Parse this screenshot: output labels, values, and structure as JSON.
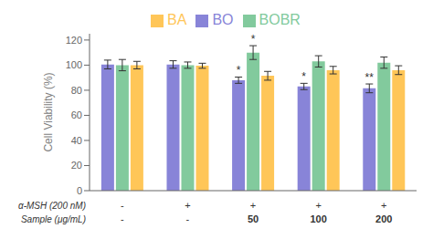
{
  "chart_data": {
    "type": "bar",
    "categories": [
      [
        "-",
        "-"
      ],
      [
        "+",
        "-"
      ],
      [
        "+",
        "50"
      ],
      [
        "+",
        "100"
      ],
      [
        "+",
        "200"
      ]
    ],
    "category_rows": [
      "α-MSH (200 nM)",
      "Sample (μg/mL)"
    ],
    "ylabel": "Cell Viability (%)",
    "ylim": [
      0,
      125
    ],
    "yticks": [
      0,
      20,
      40,
      60,
      80,
      100,
      120
    ],
    "grid": false,
    "legend": "top",
    "series": [
      {
        "name": "BO",
        "color": "#8884d8",
        "values": [
          100.5,
          100.5,
          88.0,
          83.0,
          81.5
        ],
        "errors": [
          3.5,
          3.0,
          2.5,
          2.5,
          3.5
        ]
      },
      {
        "name": "BOBR",
        "color": "#82ca9d",
        "values": [
          100.0,
          100.0,
          110.0,
          103.0,
          102.0
        ],
        "errors": [
          4.5,
          2.5,
          5.5,
          4.5,
          4.5
        ]
      },
      {
        "name": "BA",
        "color": "#ffc658",
        "values": [
          100.0,
          99.5,
          91.5,
          96.0,
          96.0
        ],
        "errors": [
          3.0,
          2.0,
          3.5,
          3.0,
          3.5
        ]
      }
    ],
    "annotations": [
      {
        "series": "BO",
        "category": 2,
        "text": "*"
      },
      {
        "series": "BOBR",
        "category": 2,
        "text": "*"
      },
      {
        "series": "BO",
        "category": 3,
        "text": "*"
      },
      {
        "series": "BO",
        "category": 4,
        "text": "**"
      }
    ]
  }
}
